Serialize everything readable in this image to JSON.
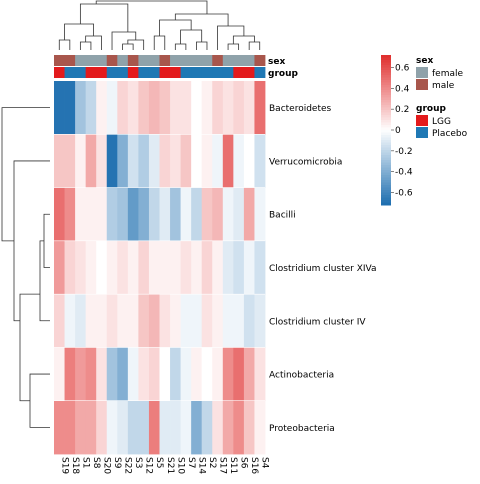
{
  "chart_data": {
    "type": "heatmap",
    "title": "",
    "columns": [
      "S19",
      "S18",
      "S1",
      "S8",
      "S20",
      "S9",
      "S22",
      "S3",
      "S12",
      "S5",
      "S21",
      "S10",
      "S7",
      "S14",
      "S2",
      "S17",
      "S11",
      "S6",
      "S16",
      "S4"
    ],
    "rows": [
      "Bacteroidetes",
      "Verrucomicrobia",
      "Bacilli",
      "Clostridium cluster XIVa",
      "Clostridium cluster IV",
      "Actinobacteria",
      "Proteobacteria"
    ],
    "values": [
      [
        -0.7,
        -0.7,
        -0.3,
        -0.2,
        0.05,
        -0.05,
        0.15,
        0.1,
        0.2,
        0.25,
        0.2,
        0.1,
        0.1,
        0.0,
        0.05,
        0.15,
        0.1,
        0.15,
        0.1,
        0.5
      ],
      [
        0.2,
        0.2,
        0.05,
        0.3,
        0.1,
        -0.7,
        -0.4,
        -0.15,
        -0.25,
        -0.1,
        0.15,
        0.1,
        0.2,
        0.0,
        0.05,
        -0.05,
        0.5,
        -0.05,
        0.0,
        -0.15
      ],
      [
        0.5,
        0.4,
        0.05,
        0.05,
        0.05,
        -0.25,
        -0.3,
        -0.5,
        -0.4,
        -0.2,
        -0.1,
        -0.3,
        -0.05,
        -0.2,
        0.2,
        0.25,
        -0.05,
        -0.1,
        0.3,
        -0.05
      ],
      [
        0.35,
        0.15,
        0.1,
        0.05,
        0.0,
        0.05,
        0.1,
        0.05,
        0.15,
        0.05,
        0.05,
        0.05,
        0.1,
        0.05,
        0.15,
        0.05,
        -0.1,
        -0.15,
        -0.05,
        -0.15
      ],
      [
        0.15,
        -0.05,
        -0.1,
        0.05,
        0.05,
        0.1,
        0.05,
        0.05,
        0.2,
        0.25,
        0.1,
        0.05,
        -0.05,
        -0.05,
        0.1,
        0.05,
        -0.05,
        -0.05,
        -0.15,
        -0.1
      ],
      [
        0.05,
        0.45,
        0.35,
        0.4,
        0.1,
        -0.3,
        -0.4,
        -0.05,
        0.1,
        0.15,
        0.0,
        -0.2,
        -0.05,
        0.05,
        0.0,
        0.05,
        0.4,
        0.5,
        0.3,
        0.1
      ],
      [
        0.4,
        0.4,
        0.3,
        0.3,
        0.15,
        -0.05,
        -0.1,
        -0.2,
        -0.2,
        0.45,
        -0.1,
        -0.1,
        -0.05,
        -0.4,
        -0.2,
        0.1,
        0.3,
        0.4,
        0.2,
        0.05
      ]
    ],
    "annotations": {
      "sex": [
        "male",
        "male",
        "female",
        "female",
        "female",
        "male",
        "female",
        "male",
        "female",
        "female",
        "male",
        "female",
        "female",
        "female",
        "female",
        "male",
        "female",
        "female",
        "female",
        "male"
      ],
      "group": [
        "LGG",
        "Placebo",
        "Placebo",
        "LGG",
        "LGG",
        "Placebo",
        "Placebo",
        "LGG",
        "Placebo",
        "Placebo",
        "LGG",
        "LGG",
        "Placebo",
        "Placebo",
        "Placebo",
        "Placebo",
        "Placebo",
        "LGG",
        "LGG",
        "Placebo"
      ]
    },
    "annotation_labels": {
      "sex": "sex",
      "group": "group"
    },
    "legend": {
      "colorbar_ticks": [
        "0.6",
        "0.4",
        "0.2",
        "0",
        "-0.2",
        "-0.4",
        "-0.6"
      ],
      "colorbar_tick_values": [
        0.6,
        0.4,
        0.2,
        0,
        -0.2,
        -0.4,
        -0.6
      ],
      "range": [
        -0.72,
        0.72
      ],
      "sex_title": "sex",
      "sex_levels": [
        "female",
        "male"
      ],
      "group_title": "group",
      "group_levels": [
        "LGG",
        "Placebo"
      ]
    },
    "colors": {
      "negative": "#1f6fb0",
      "neutral": "#ffffff",
      "positive": "#e0302f",
      "female": "#8fa2aa",
      "male": "#a8564c",
      "LGG": "#e31a1c",
      "Placebo": "#1f78b4",
      "tree": "#333333"
    }
  }
}
